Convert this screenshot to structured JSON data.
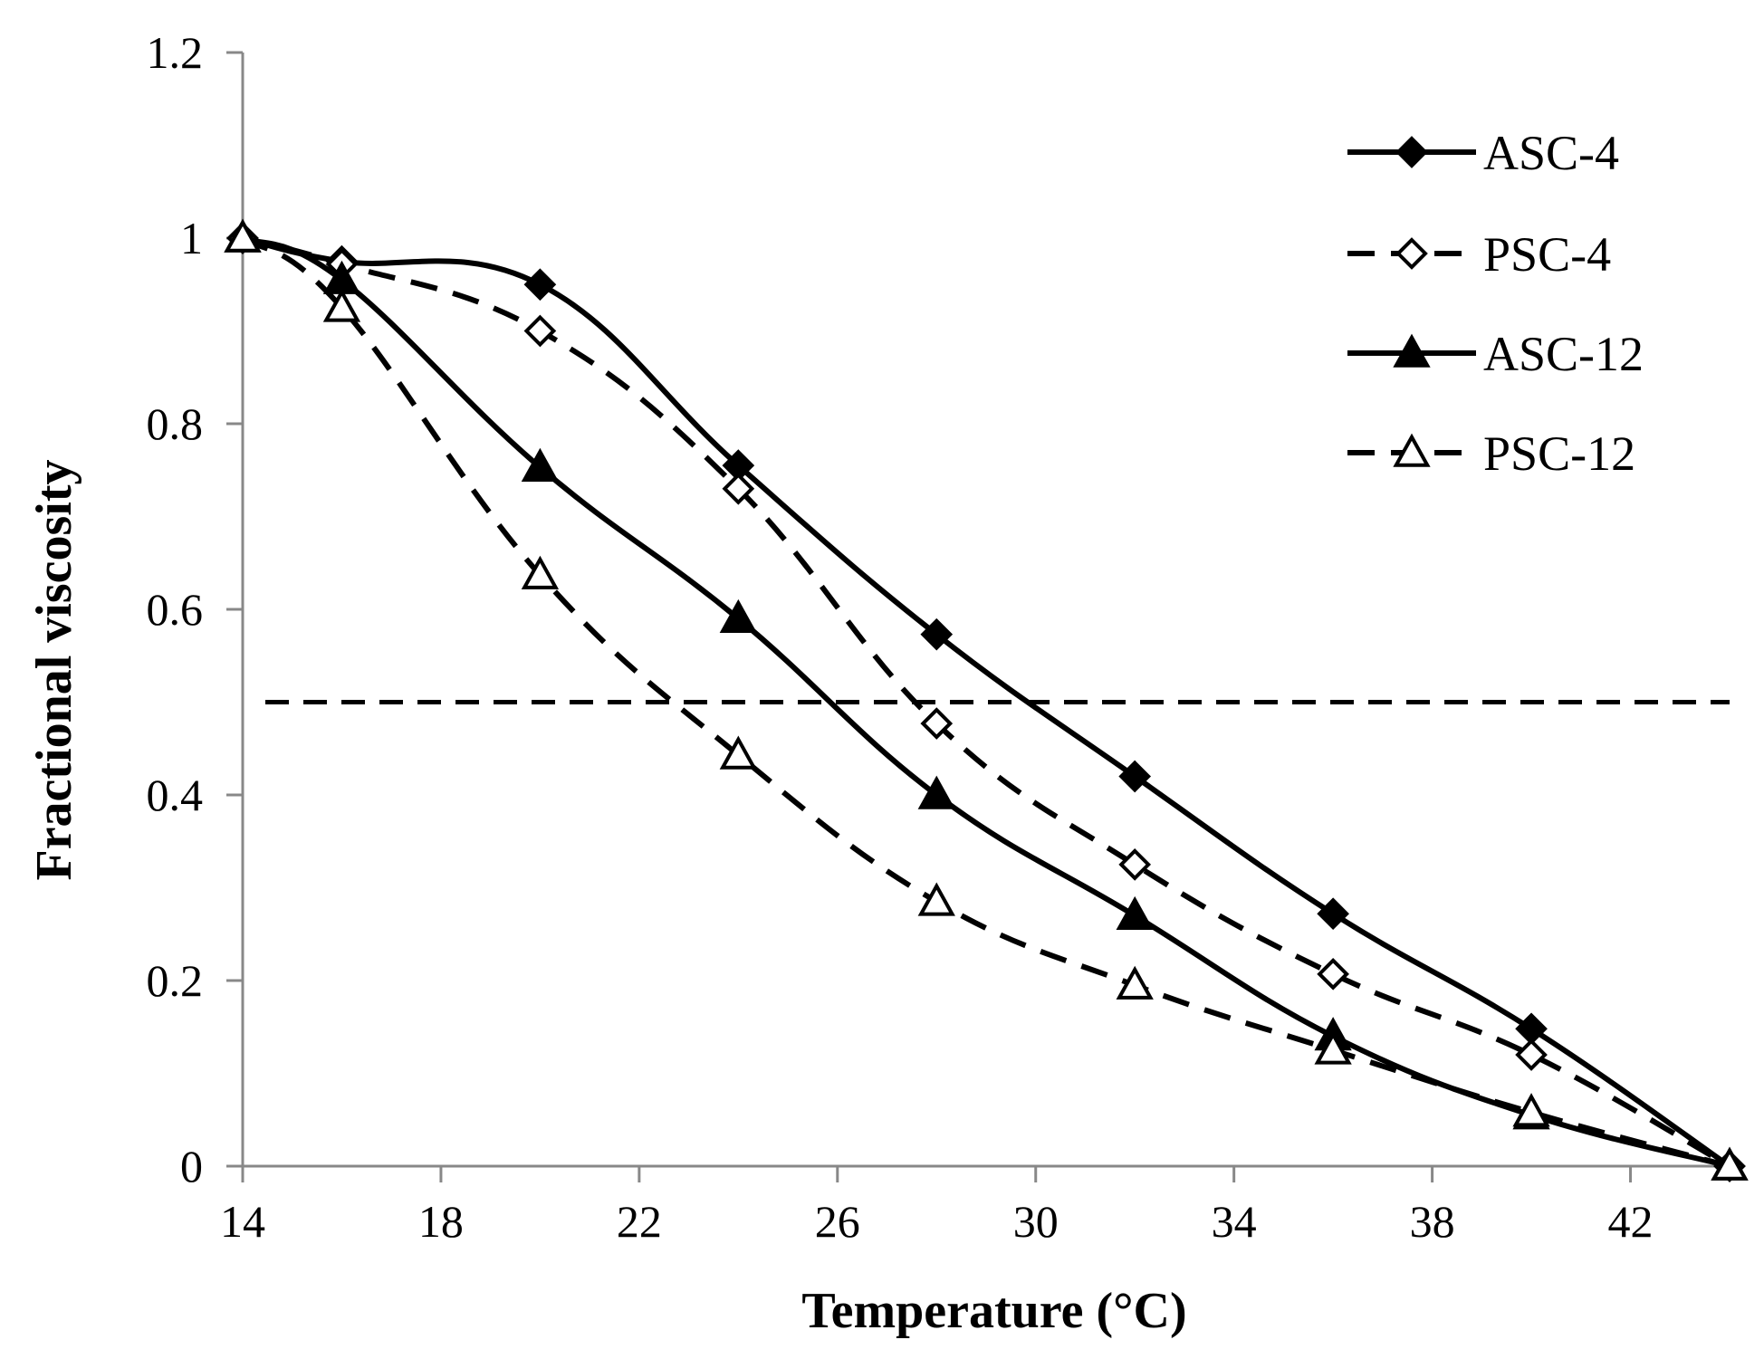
{
  "chart_data": {
    "type": "line",
    "title": "",
    "xlabel": "Temperature (°C)",
    "ylabel": "Fractional viscosity",
    "xlim": [
      14,
      44
    ],
    "ylim": [
      0,
      1.2
    ],
    "xticks": [
      14,
      18,
      22,
      26,
      30,
      34,
      38,
      42
    ],
    "xtick_labels": [
      "14",
      "18",
      "22",
      "26",
      "30",
      "34",
      "38",
      "42"
    ],
    "yticks": [
      0,
      0.2,
      0.4,
      0.6,
      0.8,
      1,
      1.2
    ],
    "ytick_labels": [
      "0",
      "0.2",
      "0.4",
      "0.6",
      "0.8",
      "1",
      "1.2"
    ],
    "grid": false,
    "legend_position": "top-right",
    "x": [
      14,
      16,
      20,
      24,
      28,
      32,
      36,
      40,
      44
    ],
    "series": [
      {
        "name": "ASC-4",
        "line": "solid",
        "marker": "diamond-filled",
        "values": [
          1.0,
          0.975,
          0.95,
          0.755,
          0.573,
          0.42,
          0.272,
          0.148,
          0.0
        ]
      },
      {
        "name": "PSC-4",
        "line": "dashed",
        "marker": "diamond-open",
        "values": [
          1.0,
          0.972,
          0.9,
          0.73,
          0.477,
          0.325,
          0.207,
          0.12,
          0.0
        ]
      },
      {
        "name": "ASC-12",
        "line": "solid",
        "marker": "triangle-filled",
        "values": [
          1.0,
          0.955,
          0.753,
          0.59,
          0.4,
          0.27,
          0.14,
          0.055,
          0.0
        ]
      },
      {
        "name": "PSC-12",
        "line": "dashed",
        "marker": "triangle-open",
        "values": [
          1.0,
          0.925,
          0.637,
          0.443,
          0.285,
          0.195,
          0.125,
          0.058,
          0.0
        ]
      }
    ],
    "reference_lines": [
      {
        "orientation": "horizontal",
        "y": 0.5,
        "style": "dashed"
      }
    ]
  }
}
